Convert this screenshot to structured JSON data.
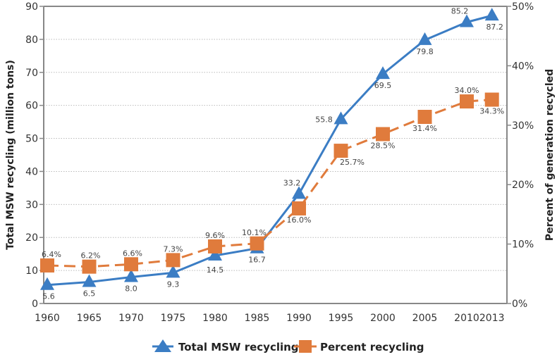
{
  "chart_data": {
    "type": "line",
    "title": "",
    "x": [
      1960,
      1965,
      1970,
      1975,
      1980,
      1985,
      1990,
      1995,
      2000,
      2005,
      2010,
      2013
    ],
    "x_tick_labels": [
      "1960",
      "1965",
      "1970",
      "1975",
      "1980",
      "1985",
      "1990",
      "1995",
      "2000",
      "2005",
      "2010",
      "2013"
    ],
    "ylabel_left": "Total MSW recycling (million tons)",
    "ylabel_right": "Percent of generation recycled",
    "ylim_left": [
      0,
      90
    ],
    "ylim_right": [
      0,
      50
    ],
    "y_left_ticks": [
      "0",
      "10",
      "20",
      "30",
      "40",
      "50",
      "60",
      "70",
      "80",
      "90"
    ],
    "y_right_ticks": [
      "0%",
      "10%",
      "20%",
      "30%",
      "40%",
      "50%"
    ],
    "grid": "horizontal dotted",
    "legend_position": "bottom",
    "series": [
      {
        "name": "Total MSW recycling",
        "axis": "left",
        "marker": "triangle",
        "line": "solid",
        "color": "#3b7dc4",
        "values": [
          5.6,
          6.5,
          8.0,
          9.3,
          14.5,
          16.7,
          33.2,
          55.8,
          69.5,
          79.8,
          85.2,
          87.2
        ],
        "labels": [
          "5.6",
          "6.5",
          "8.0",
          "9.3",
          "14.5",
          "16.7",
          "33.2",
          "55.8",
          "69.5",
          "79.8",
          "85.2",
          "87.2"
        ]
      },
      {
        "name": "Percent recycling",
        "axis": "right",
        "marker": "square",
        "line": "dashed",
        "color": "#e07b3c",
        "values": [
          6.4,
          6.2,
          6.6,
          7.3,
          9.6,
          10.1,
          16.0,
          25.7,
          28.5,
          31.4,
          34.0,
          34.3
        ],
        "labels": [
          "6.4%",
          "6.2%",
          "6.6%",
          "7.3%",
          "9.6%",
          "10.1%",
          "16.0%",
          "25.7%",
          "28.5%",
          "31.4%",
          "34.0%",
          "34.3%"
        ]
      }
    ]
  }
}
